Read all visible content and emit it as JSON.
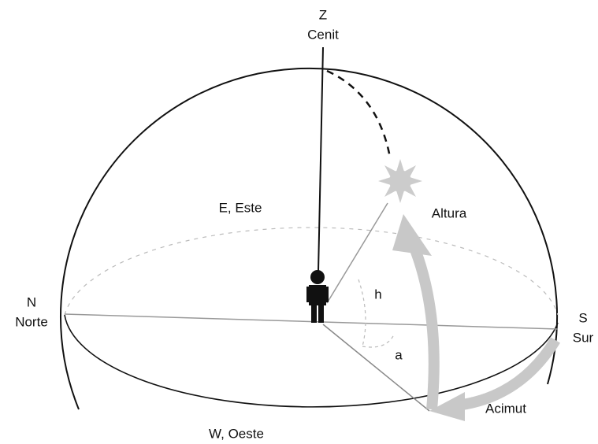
{
  "labels": [
    {
      "key": "zenith-letter",
      "text": "Z"
    },
    {
      "key": "zenith-name",
      "text": "Cenit"
    },
    {
      "key": "east",
      "text": "E, Este"
    },
    {
      "key": "altitude",
      "text": "Altura"
    },
    {
      "key": "altitude-angle",
      "text": "h"
    },
    {
      "key": "north-letter",
      "text": "N"
    },
    {
      "key": "north-name",
      "text": "Norte"
    },
    {
      "key": "south-letter",
      "text": "S"
    },
    {
      "key": "south-name",
      "text": "Sur"
    },
    {
      "key": "azimuth-angle",
      "text": "a"
    },
    {
      "key": "azimuth",
      "text": "Acimut"
    },
    {
      "key": "west",
      "text": "W, Oeste"
    }
  ]
}
